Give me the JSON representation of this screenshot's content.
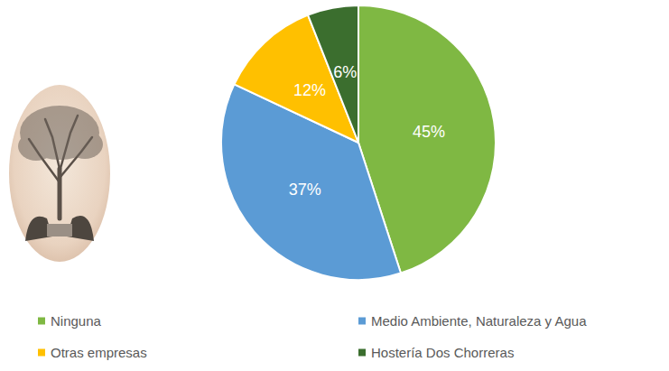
{
  "chart_data": {
    "type": "pie",
    "categories": [
      "Ninguna",
      "Medio Ambiente, Naturaleza y Agua",
      "Otras empresas",
      "Hostería Dos Chorreras"
    ],
    "values": [
      45,
      37,
      12,
      6
    ],
    "value_labels": [
      "45%",
      "37%",
      "12%",
      "6%"
    ],
    "colors": [
      "#7fb843",
      "#5b9bd5",
      "#ffc000",
      "#3b6e2e"
    ],
    "data_labels": true,
    "legend": "bottom"
  }
}
